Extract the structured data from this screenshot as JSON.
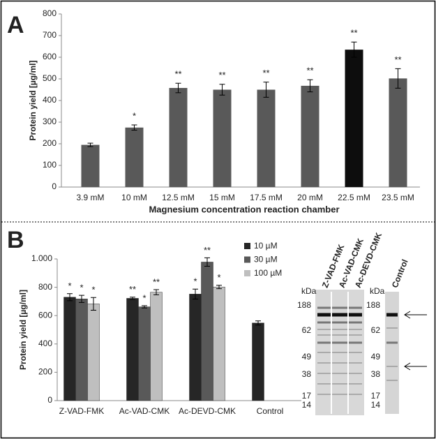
{
  "panels": [
    "A",
    "B"
  ],
  "chart_data": [
    {
      "type": "bar",
      "y_label": "Protein yield [µg/ml]",
      "x_label": "Magnesium concentration reaction chamber",
      "categories": [
        "3.9 mM",
        "10 mM",
        "12.5 mM",
        "15 mM",
        "17.5 mM",
        "20 mM",
        "22.5 mM",
        "23.5 mM"
      ],
      "values": [
        195,
        275,
        458,
        450,
        450,
        468,
        635,
        502
      ],
      "errors": [
        8,
        12,
        22,
        25,
        35,
        28,
        35,
        45
      ],
      "colors": [
        "#595959",
        "#595959",
        "#595959",
        "#595959",
        "#595959",
        "#595959",
        "#0d0d0d",
        "#595959"
      ],
      "annotations": [
        null,
        "*",
        "**",
        "**",
        "**",
        "**",
        "**",
        "**"
      ],
      "ylim": [
        0,
        800
      ],
      "yticks": [
        0,
        100,
        200,
        300,
        400,
        500,
        600,
        700,
        800
      ]
    },
    {
      "type": "grouped_bar",
      "y_label": "Protein yield [µg/ml]",
      "categories": [
        "Z-VAD-FMK",
        "Ac-VAD-CMK",
        "Ac-DEVD-CMK",
        "Control"
      ],
      "series": [
        {
          "name": "10 µM",
          "color": "#262626",
          "values": [
            730,
            722,
            752,
            548
          ],
          "errors": [
            25,
            8,
            35,
            15
          ],
          "annotations": [
            "*",
            "**",
            "*",
            null
          ]
        },
        {
          "name": "30 µM",
          "color": "#595959",
          "values": [
            718,
            662,
            978,
            null
          ],
          "errors": [
            25,
            8,
            30,
            null
          ],
          "annotations": [
            "*",
            "*",
            "**",
            null
          ]
        },
        {
          "name": "100 µM",
          "color": "#bfbfbf",
          "values": [
            683,
            765,
            802,
            null
          ],
          "errors": [
            45,
            18,
            12,
            null
          ],
          "annotations": [
            "*",
            "**",
            "*",
            null
          ]
        }
      ],
      "ylim": [
        0,
        1000
      ],
      "yticks": [
        0,
        200,
        400,
        600,
        800,
        {
          "value": 1000,
          "label": "1.000"
        }
      ],
      "legend": "top-right"
    }
  ],
  "gel": {
    "unit": "kDa",
    "lanes": [
      "Z-VAD-FMK",
      "Ac-VAD-CMK",
      "Ac-DEVD-CMK",
      "Control"
    ],
    "left_markers": [
      188,
      62,
      49,
      38,
      17,
      14
    ],
    "right_markers": [
      188,
      62,
      49,
      38,
      17,
      14
    ]
  }
}
